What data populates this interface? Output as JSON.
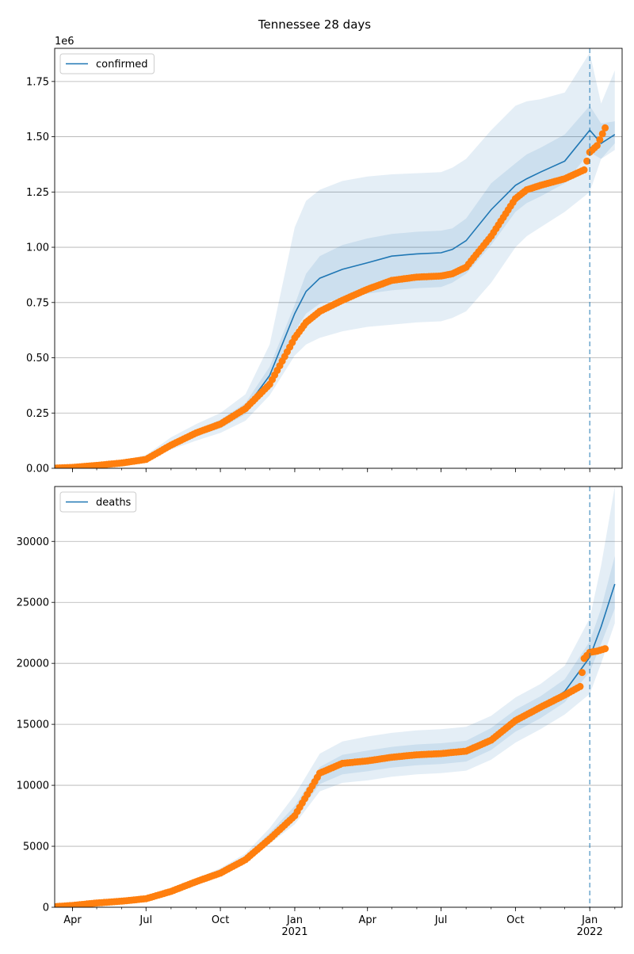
{
  "title": "Tennessee 28 days",
  "colors": {
    "line": "#1f77b4",
    "band": "#1f77b4",
    "observed": "#ff7f0e",
    "vline": "#1f77b4",
    "grid": "#b0b0b0"
  },
  "chart_data": [
    {
      "type": "line",
      "legend": "confirmed",
      "legend_loc": "upper-left",
      "scale_label": "1e6",
      "grid": "y",
      "ylim": [
        0,
        1900000
      ],
      "yticks": [
        0,
        250000,
        500000,
        750000,
        1000000,
        1250000,
        1500000,
        1750000
      ],
      "ytick_labels": [
        "0.00",
        "0.25",
        "0.50",
        "0.75",
        "1.00",
        "1.25",
        "1.50",
        "1.75"
      ],
      "forecast_start": "2022-01-01",
      "model": {
        "x": [
          "2020-03-10",
          "2020-04-01",
          "2020-05-01",
          "2020-06-01",
          "2020-07-01",
          "2020-08-01",
          "2020-09-01",
          "2020-10-01",
          "2020-11-01",
          "2020-12-01",
          "2021-01-01",
          "2021-01-15",
          "2021-02-01",
          "2021-03-01",
          "2021-04-01",
          "2021-05-01",
          "2021-06-01",
          "2021-07-01",
          "2021-07-15",
          "2021-08-01",
          "2021-09-01",
          "2021-10-01",
          "2021-10-15",
          "2021-11-01",
          "2021-12-01",
          "2022-01-01",
          "2022-01-15",
          "2022-02-01"
        ],
        "median": [
          2000,
          5000,
          15000,
          25000,
          45000,
          110000,
          160000,
          200000,
          270000,
          420000,
          700000,
          800000,
          860000,
          900000,
          930000,
          960000,
          970000,
          975000,
          990000,
          1030000,
          1170000,
          1280000,
          1310000,
          1340000,
          1390000,
          1530000,
          1470000,
          1510000
        ],
        "inner": [
          [
            1000,
            3000
          ],
          [
            4000,
            6000
          ],
          [
            13000,
            17000
          ],
          [
            22000,
            28000
          ],
          [
            40000,
            50000
          ],
          [
            100000,
            120000
          ],
          [
            145000,
            175000
          ],
          [
            180000,
            220000
          ],
          [
            245000,
            295000
          ],
          [
            380000,
            460000
          ],
          [
            620000,
            740000
          ],
          [
            700000,
            880000
          ],
          [
            745000,
            960000
          ],
          [
            770000,
            1010000
          ],
          [
            790000,
            1040000
          ],
          [
            805000,
            1060000
          ],
          [
            815000,
            1070000
          ],
          [
            820000,
            1075000
          ],
          [
            840000,
            1085000
          ],
          [
            880000,
            1130000
          ],
          [
            1010000,
            1290000
          ],
          [
            1160000,
            1380000
          ],
          [
            1200000,
            1420000
          ],
          [
            1230000,
            1450000
          ],
          [
            1290000,
            1510000
          ],
          [
            1430000,
            1640000
          ],
          [
            1400000,
            1560000
          ],
          [
            1470000,
            1570000
          ]
        ],
        "outer": [
          [
            500,
            4000
          ],
          [
            2500,
            8000
          ],
          [
            10000,
            22000
          ],
          [
            17000,
            35000
          ],
          [
            32000,
            60000
          ],
          [
            85000,
            140000
          ],
          [
            125000,
            200000
          ],
          [
            160000,
            250000
          ],
          [
            215000,
            335000
          ],
          [
            330000,
            560000
          ],
          [
            510000,
            1090000
          ],
          [
            560000,
            1210000
          ],
          [
            590000,
            1260000
          ],
          [
            620000,
            1300000
          ],
          [
            640000,
            1320000
          ],
          [
            650000,
            1330000
          ],
          [
            660000,
            1335000
          ],
          [
            665000,
            1340000
          ],
          [
            680000,
            1360000
          ],
          [
            710000,
            1400000
          ],
          [
            840000,
            1530000
          ],
          [
            1000000,
            1640000
          ],
          [
            1050000,
            1660000
          ],
          [
            1090000,
            1670000
          ],
          [
            1160000,
            1700000
          ],
          [
            1250000,
            1880000
          ],
          [
            1400000,
            1650000
          ],
          [
            1440000,
            1800000
          ]
        ]
      },
      "observed": {
        "x": [
          "2020-03-10",
          "2020-04-01",
          "2020-05-01",
          "2020-06-01",
          "2020-07-01",
          "2020-08-01",
          "2020-09-01",
          "2020-10-01",
          "2020-11-01",
          "2020-12-01",
          "2021-01-01",
          "2021-01-15",
          "2021-02-01",
          "2021-03-01",
          "2021-04-01",
          "2021-05-01",
          "2021-06-01",
          "2021-07-01",
          "2021-07-15",
          "2021-08-01",
          "2021-09-01",
          "2021-10-01",
          "2021-10-15",
          "2021-11-01",
          "2021-12-01",
          "2021-12-25",
          "2022-01-01",
          "2022-01-10",
          "2022-01-20"
        ],
        "y": [
          1000,
          4000,
          13000,
          24000,
          40000,
          105000,
          160000,
          200000,
          270000,
          380000,
          590000,
          660000,
          710000,
          760000,
          810000,
          850000,
          865000,
          870000,
          880000,
          910000,
          1050000,
          1220000,
          1260000,
          1280000,
          1310000,
          1350000,
          1430000,
          1460000,
          1540000
        ]
      }
    },
    {
      "type": "line",
      "legend": "deaths",
      "legend_loc": "upper-left",
      "grid": "y",
      "ylim": [
        0,
        34500
      ],
      "yticks": [
        0,
        5000,
        10000,
        15000,
        20000,
        25000,
        30000
      ],
      "ytick_labels": [
        "0",
        "5000",
        "10000",
        "15000",
        "20000",
        "25000",
        "30000"
      ],
      "forecast_start": "2022-01-01",
      "model": {
        "x": [
          "2020-03-10",
          "2020-04-01",
          "2020-05-01",
          "2020-06-01",
          "2020-07-01",
          "2020-08-01",
          "2020-09-01",
          "2020-10-01",
          "2020-11-01",
          "2020-12-01",
          "2021-01-01",
          "2021-02-01",
          "2021-03-01",
          "2021-04-01",
          "2021-05-01",
          "2021-06-01",
          "2021-07-01",
          "2021-08-01",
          "2021-09-01",
          "2021-10-01",
          "2021-11-01",
          "2021-12-01",
          "2022-01-01",
          "2022-01-15",
          "2022-02-01"
        ],
        "median": [
          50,
          150,
          350,
          500,
          750,
          1300,
          2100,
          2900,
          4000,
          5800,
          7800,
          10800,
          11700,
          12000,
          12300,
          12500,
          12600,
          12800,
          13800,
          15300,
          16400,
          17700,
          20500,
          23000,
          26500
        ],
        "inner": [
          [
            40,
            60
          ],
          [
            130,
            170
          ],
          [
            320,
            380
          ],
          [
            460,
            540
          ],
          [
            700,
            800
          ],
          [
            1220,
            1380
          ],
          [
            1980,
            2220
          ],
          [
            2750,
            3050
          ],
          [
            3800,
            4200
          ],
          [
            5500,
            6100
          ],
          [
            7300,
            8300
          ],
          [
            10100,
            11500
          ],
          [
            10900,
            12500
          ],
          [
            11150,
            12850
          ],
          [
            11450,
            13150
          ],
          [
            11650,
            13350
          ],
          [
            11750,
            13450
          ],
          [
            11950,
            13650
          ],
          [
            12900,
            14700
          ],
          [
            14400,
            16200
          ],
          [
            15500,
            17300
          ],
          [
            16800,
            18700
          ],
          [
            19300,
            21800
          ],
          [
            21600,
            24500
          ],
          [
            24500,
            28800
          ]
        ],
        "outer": [
          [
            30,
            70
          ],
          [
            110,
            190
          ],
          [
            290,
            410
          ],
          [
            420,
            580
          ],
          [
            650,
            850
          ],
          [
            1150,
            1450
          ],
          [
            1850,
            2350
          ],
          [
            2600,
            3200
          ],
          [
            3600,
            4400
          ],
          [
            5200,
            6500
          ],
          [
            6800,
            9200
          ],
          [
            9500,
            12600
          ],
          [
            10200,
            13600
          ],
          [
            10400,
            14000
          ],
          [
            10700,
            14300
          ],
          [
            10900,
            14500
          ],
          [
            11000,
            14600
          ],
          [
            11200,
            14800
          ],
          [
            12100,
            15700
          ],
          [
            13500,
            17200
          ],
          [
            14600,
            18300
          ],
          [
            15800,
            19800
          ],
          [
            17500,
            23700
          ],
          [
            20000,
            28000
          ],
          [
            23300,
            34500
          ]
        ]
      },
      "observed": {
        "x": [
          "2020-03-10",
          "2020-04-01",
          "2020-05-01",
          "2020-06-01",
          "2020-07-01",
          "2020-08-01",
          "2020-09-01",
          "2020-10-01",
          "2020-11-01",
          "2020-12-01",
          "2021-01-01",
          "2021-02-01",
          "2021-03-01",
          "2021-04-01",
          "2021-05-01",
          "2021-06-01",
          "2021-07-01",
          "2021-08-01",
          "2021-09-01",
          "2021-10-01",
          "2021-11-01",
          "2021-12-01",
          "2021-12-20",
          "2021-12-25",
          "2022-01-01",
          "2022-01-10",
          "2022-01-20"
        ],
        "y": [
          50,
          150,
          350,
          500,
          700,
          1300,
          2100,
          2800,
          3900,
          5600,
          7500,
          11000,
          11800,
          12000,
          12300,
          12500,
          12600,
          12800,
          13700,
          15300,
          16400,
          17400,
          18100,
          20400,
          20900,
          21000,
          21200
        ]
      }
    }
  ],
  "x_axis": {
    "start": "2020-03-10",
    "end": "2022-02-10",
    "ticks": [
      {
        "date": "2020-04-01",
        "label": "Apr"
      },
      {
        "date": "2020-07-01",
        "label": "Jul"
      },
      {
        "date": "2020-10-01",
        "label": "Oct"
      },
      {
        "date": "2021-01-01",
        "label": "Jan",
        "sublabel": "2021"
      },
      {
        "date": "2021-04-01",
        "label": "Apr"
      },
      {
        "date": "2021-07-01",
        "label": "Jul"
      },
      {
        "date": "2021-10-01",
        "label": "Oct"
      },
      {
        "date": "2022-01-01",
        "label": "Jan",
        "sublabel": "2022"
      }
    ]
  }
}
